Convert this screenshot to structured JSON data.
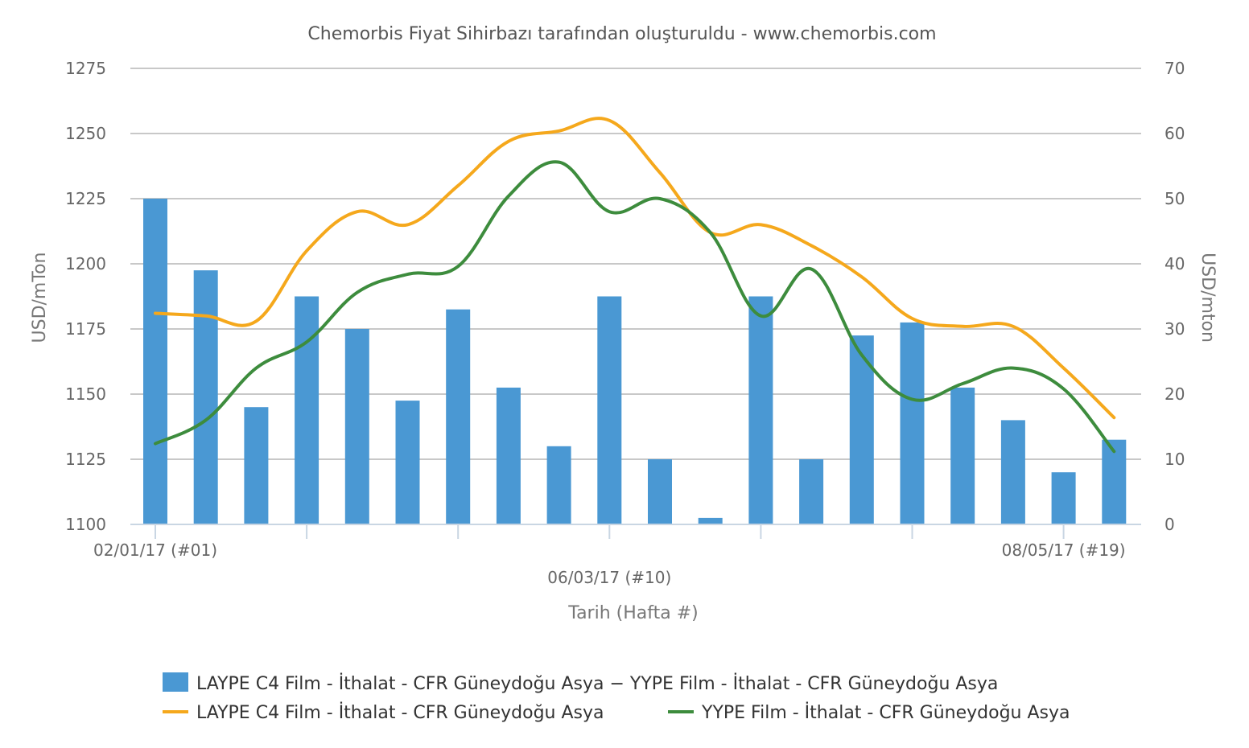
{
  "chart_data": {
    "type": "bar+line",
    "title": "Chemorbis Fiyat Sihirbazı tarafından oluşturuldu - www.chemorbis.com",
    "xlabel": "Tarih (Hafta #)",
    "ylabel_left": "USD/mTon",
    "ylabel_right": "USD/mton",
    "ylim_left": [
      1100,
      1275
    ],
    "ylim_right": [
      0,
      70
    ],
    "yticks_left": [
      "1100",
      "1125",
      "1150",
      "1175",
      "1200",
      "1225",
      "1250",
      "1275"
    ],
    "yticks_right": [
      "0",
      "10",
      "20",
      "30",
      "40",
      "50",
      "60",
      "70"
    ],
    "x_tick_labels": [
      {
        "index": 0,
        "label": "02/01/17 (#01)"
      },
      {
        "index": 9,
        "label": "06/03/17 (#10)"
      },
      {
        "index": 18,
        "label": "08/05/17 (#19)"
      }
    ],
    "num_weeks": 20,
    "grid": true,
    "legend_position": "bottom",
    "series": [
      {
        "name": "LAYPE C4 Film - İthalat - CFR Güneydoğu Asya − YYPE Film - İthalat - CFR Güneydoğu Asya",
        "type": "bar",
        "axis": "right",
        "color": "#4a98d3",
        "values": [
          50,
          39,
          18,
          35,
          30,
          19,
          33,
          21,
          12,
          35,
          10,
          1,
          35,
          10,
          29,
          31,
          21,
          16,
          8,
          13
        ]
      },
      {
        "name": "LAYPE C4 Film - İthalat - CFR Güneydoğu Asya",
        "type": "line",
        "axis": "left",
        "color": "#f5a81c",
        "values": [
          1181,
          1180,
          1178,
          1205,
          1220,
          1215,
          1230,
          1247,
          1251,
          1255,
          1235,
          1212,
          1215,
          1207,
          1195,
          1179,
          1176,
          1176,
          1160,
          1141
        ]
      },
      {
        "name": "YYPE Film - İthalat - CFR Güneydoğu Asya",
        "type": "line",
        "axis": "left",
        "color": "#3d8c3d",
        "values": [
          1131,
          1140,
          1160,
          1170,
          1189,
          1196,
          1199,
          1226,
          1239,
          1220,
          1225,
          1212,
          1180,
          1198,
          1165,
          1148,
          1154,
          1160,
          1152,
          1128
        ]
      }
    ]
  }
}
